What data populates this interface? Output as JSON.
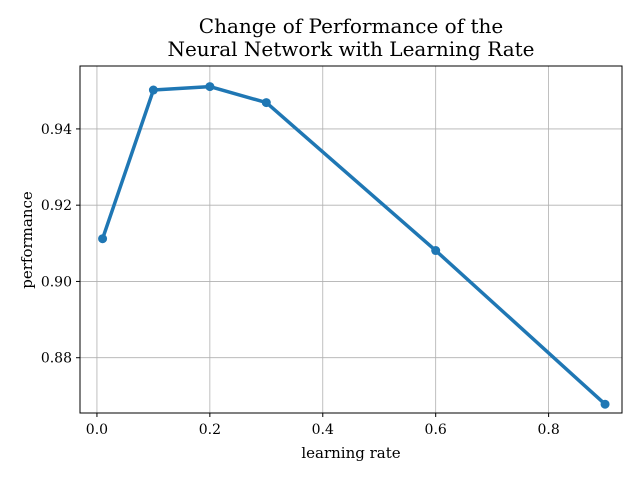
{
  "chart_data": {
    "type": "line",
    "title_lines": [
      "Change of Performance of the",
      "Neural Network with Learning Rate"
    ],
    "xlabel": "learning rate",
    "ylabel": "performance",
    "xlim": [
      -0.03,
      0.93
    ],
    "ylim": [
      0.8655,
      0.9565
    ],
    "x_ticks": [
      0.0,
      0.2,
      0.4,
      0.6,
      0.8
    ],
    "x_tick_labels": [
      "0.0",
      "0.2",
      "0.4",
      "0.6",
      "0.8"
    ],
    "y_ticks": [
      0.88,
      0.9,
      0.92,
      0.94
    ],
    "y_tick_labels": [
      "0.88",
      "0.90",
      "0.92",
      "0.94"
    ],
    "grid": true,
    "series": [
      {
        "color": "#1f77b4",
        "x": [
          0.01,
          0.1,
          0.2,
          0.3,
          0.6,
          0.9
        ],
        "y": [
          0.9112,
          0.9502,
          0.9511,
          0.9469,
          0.9081,
          0.8678
        ]
      }
    ]
  }
}
